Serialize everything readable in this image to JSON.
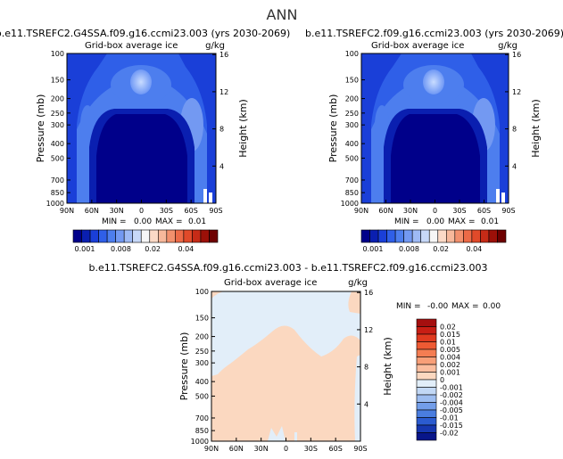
{
  "figure": {
    "title": "ANN"
  },
  "chart_data": [
    {
      "type": "heatmap",
      "panel": "top-left",
      "title": "b.e11.TSREFC2.G4SSA.f09.g16.ccmi23.003 (yrs 2030-2069)",
      "subtitle": "Grid-box average ice",
      "units": "g/kg",
      "ylabel": "Pressure (mb)",
      "y2label": "Height (km)",
      "x_ticks": [
        "90N",
        "60N",
        "30N",
        "0",
        "30S",
        "60S",
        "90S"
      ],
      "y_ticks": [
        "100",
        "150",
        "200",
        "250",
        "300",
        "400",
        "500",
        "700",
        "850",
        "1000"
      ],
      "y2_ticks": [
        "16",
        "12",
        "8",
        "4"
      ],
      "stats": {
        "min_label": "MIN =",
        "min": "0.00",
        "max_label": "MAX =",
        "max": "0.01"
      },
      "colorbar_ticks": [
        "0.001",
        "0.008",
        "0.02",
        "0.04"
      ],
      "colorbar_colors": [
        "#00008a",
        "#0a1fb0",
        "#1a3fd8",
        "#2f5fe8",
        "#4d7eee",
        "#7399f2",
        "#9ebaf5",
        "#c7d8f8",
        "#f6f6f6",
        "#fbd9c6",
        "#f7b89b",
        "#f2906d",
        "#ec6a47",
        "#e04a2a",
        "#c62b17",
        "#9c1008",
        "#6e0000"
      ]
    },
    {
      "type": "heatmap",
      "panel": "top-right",
      "title": "b.e11.TSREFC2.f09.g16.ccmi23.003 (yrs 2030-2069)",
      "subtitle": "Grid-box average ice",
      "units": "g/kg",
      "ylabel": "Pressure (mb)",
      "y2label": "Height (km)",
      "x_ticks": [
        "90N",
        "60N",
        "30N",
        "0",
        "30S",
        "60S",
        "90S"
      ],
      "y_ticks": [
        "100",
        "150",
        "200",
        "250",
        "300",
        "400",
        "500",
        "700",
        "850",
        "1000"
      ],
      "y2_ticks": [
        "16",
        "12",
        "8",
        "4"
      ],
      "stats": {
        "min_label": "MIN =",
        "min": "0.00",
        "max_label": "MAX =",
        "max": "0.01"
      },
      "colorbar_ticks": [
        "0.001",
        "0.008",
        "0.02",
        "0.04"
      ]
    },
    {
      "type": "heatmap",
      "panel": "bottom-difference",
      "title": "b.e11.TSREFC2.G4SSA.f09.g16.ccmi23.003 - b.e11.TSREFC2.f09.g16.ccmi23.003",
      "subtitle": "Grid-box average ice",
      "units": "g/kg",
      "ylabel": "Pressure (mb)",
      "y2label": "Height (km)",
      "x_ticks": [
        "90N",
        "60N",
        "30N",
        "0",
        "30S",
        "60S",
        "90S"
      ],
      "y_ticks": [
        "100",
        "150",
        "200",
        "250",
        "300",
        "400",
        "500",
        "700",
        "850",
        "1000"
      ],
      "y2_ticks": [
        "16",
        "12",
        "8",
        "4"
      ],
      "stats": {
        "min_label": "MIN =",
        "min": "-0.00",
        "max_label": "MAX =",
        "max": "0.00"
      },
      "colorbar_ticks": [
        "0.02",
        "0.015",
        "0.01",
        "0.005",
        "0.004",
        "0.002",
        "0.001",
        "0",
        "-0.001",
        "-0.002",
        "-0.004",
        "-0.005",
        "-0.01",
        "-0.015",
        "-0.02"
      ],
      "colorbar_colors": [
        "#a50f0f",
        "#c81e14",
        "#e03a1f",
        "#ee5a33",
        "#f47d52",
        "#f89f78",
        "#fbbd9e",
        "#fbd8c0",
        "#e2eef9",
        "#c2d8f5",
        "#9dbdf0",
        "#739ee9",
        "#4a7ddf",
        "#2b5bd0",
        "#1637b0",
        "#08168a"
      ]
    }
  ]
}
